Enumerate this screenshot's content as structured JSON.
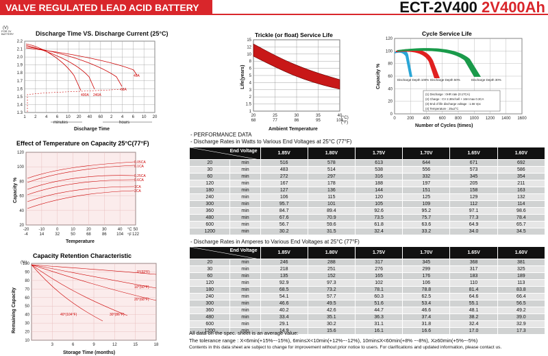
{
  "header": {
    "banner": "VALVE REGULATED LEAD ACID BATTERY",
    "model": "ECT-2V400",
    "rating": "2V400Ah"
  },
  "charts": {
    "discharge": {
      "title": "Discharge Time VS. Discharge Current (25°C)",
      "yaxis_unit": "(V)\nFOR 2V\nBATTERY",
      "yticks": [
        "2.2",
        "2.1",
        "2.0",
        "1.9",
        "1.8",
        "1.7",
        "1.6",
        "1.5",
        "1.4",
        "1.3"
      ],
      "xticks": [
        "1",
        "2",
        "4",
        "6",
        "10",
        "20",
        "40",
        "60",
        "2",
        "4",
        "6",
        "10",
        "20"
      ],
      "minutes": "minutes",
      "hours": "hours",
      "xlabel": "Discharge Time",
      "curve_labels": [
        "400A",
        "240A",
        "68A",
        "40A"
      ]
    },
    "trickle": {
      "title": "Trickle (or float) Service Life",
      "ylabel": "Life(years)",
      "yticks": [
        "15",
        "12",
        "10",
        "8",
        "6",
        "5",
        "4",
        "3",
        "2",
        "1.5",
        "1"
      ],
      "xticks_c": [
        "20",
        "25",
        "30",
        "35",
        "40"
      ],
      "xticks_f": [
        "68",
        "77",
        "86",
        "95",
        "104"
      ],
      "unit_c": "(°C)",
      "unit_f": "(°F)",
      "xlabel": "Ambient Temperature"
    },
    "cycle": {
      "title": "Cycle Service Life",
      "ylabel": "Capacity %",
      "yticks": [
        "120",
        "100",
        "80",
        "60",
        "40",
        "20",
        "0"
      ],
      "xticks": [
        "0",
        "200",
        "400",
        "600",
        "800",
        "1000",
        "1200",
        "1400",
        "1600"
      ],
      "xlabel": "Number of Cycles (times)",
      "depth_labels": [
        "Discharge Depth 100%",
        "Discharge Depth 50%",
        "Discharge Depth 30%"
      ],
      "notes": [
        "(1) Discharge : 0HR rate (0.17CA)",
        "(2) Charge : CV 2.36V/cell + 16H max 0.3CA",
        "(3) End of life discharge voltage : 1.66 Vpc",
        "(4) Temperature : 25±2°C"
      ]
    },
    "temp": {
      "title": "Effect of Temperature on Capacity  25°C(77°F)",
      "ylabel": "Capacity %",
      "yticks": [
        "120",
        "100",
        "80",
        "60",
        "40",
        "20"
      ],
      "xticks_c": [
        "-20",
        "-10",
        "0",
        "10",
        "20",
        "30",
        "40",
        "50"
      ],
      "xticks_f": [
        "-4",
        "14",
        "32",
        "50",
        "68",
        "86",
        "104",
        "122"
      ],
      "unit_c": "°C",
      "unit_f": "°F",
      "xlabel": "Temperature",
      "curve_labels": [
        "0.05CA",
        "0.1CA",
        "0.25CA",
        "0.6CA",
        "1CA",
        "2CA"
      ]
    },
    "retention": {
      "title": "Capacity Retention Characteristic",
      "ylabel": "Remaining Capacity",
      "unit": "(%)",
      "yticks": [
        "100",
        "90",
        "80",
        "70",
        "60",
        "50",
        "40",
        "30",
        "20",
        "10"
      ],
      "xticks": [
        "3",
        "6",
        "9",
        "12",
        "15",
        "18"
      ],
      "xlabel": "Storage Time (months)",
      "curve_labels": [
        "0°(32°F)",
        "10°(50°F)",
        "20°(68°F)",
        "40°(104°F)",
        "30°(86°F)"
      ]
    }
  },
  "performance": {
    "heading": "- PERFORMANCE DATA",
    "watts_heading": "- Discharge Rates in Watts to Various End Voltages at 25°C (77°F)",
    "amps_heading": "- Discharge Rates in Amperes to Various End Voltages at 25°C (77°F)",
    "corner_label": "End Voltage",
    "voltages": [
      "1.85V",
      "1.80V",
      "1.75V",
      "1.70V",
      "1.65V",
      "1.60V"
    ],
    "unit": "min",
    "times": [
      "20",
      "30",
      "60",
      "120",
      "180",
      "240",
      "300",
      "360",
      "480",
      "600",
      "1200"
    ],
    "watts": [
      [
        "516",
        "578",
        "613",
        "644",
        "671",
        "692"
      ],
      [
        "483",
        "514",
        "538",
        "556",
        "573",
        "586"
      ],
      [
        "272",
        "297",
        "316",
        "332",
        "345",
        "354"
      ],
      [
        "167",
        "178",
        "188",
        "197",
        "205",
        "211"
      ],
      [
        "127",
        "136",
        "144",
        "151",
        "158",
        "163"
      ],
      [
        "106",
        "115",
        "120",
        "125",
        "129",
        "132"
      ],
      [
        "95.7",
        "101",
        "105",
        "109",
        "112",
        "114"
      ],
      [
        "84.7",
        "89.4",
        "92.6",
        "95.2",
        "97.1",
        "98.6"
      ],
      [
        "67.6",
        "70.9",
        "73.5",
        "75.7",
        "77.3",
        "78.4"
      ],
      [
        "56.7",
        "59.6",
        "61.8",
        "63.6",
        "64.9",
        "65.7"
      ],
      [
        "30.2",
        "31.5",
        "32.4",
        "33.2",
        "34.0",
        "34.5"
      ]
    ],
    "amps": [
      [
        "246",
        "288",
        "317",
        "345",
        "368",
        "381"
      ],
      [
        "218",
        "251",
        "276",
        "299",
        "317",
        "325"
      ],
      [
        "135",
        "152",
        "165",
        "176",
        "183",
        "189"
      ],
      [
        "92.9",
        "97.3",
        "102",
        "106",
        "110",
        "113"
      ],
      [
        "68.5",
        "73.2",
        "78.1",
        "78.8",
        "81.4",
        "83.8"
      ],
      [
        "54.1",
        "57.7",
        "60.3",
        "62.5",
        "64.6",
        "66.4"
      ],
      [
        "46.6",
        "49.5",
        "51.6",
        "53.4",
        "55.1",
        "56.5"
      ],
      [
        "40.2",
        "42.6",
        "44.7",
        "46.6",
        "48.1",
        "49.2"
      ],
      [
        "33.4",
        "35.1",
        "36.3",
        "37.4",
        "38.2",
        "39.0"
      ],
      [
        "29.1",
        "30.2",
        "31.1",
        "31.8",
        "32.4",
        "32.9"
      ],
      [
        "14.9",
        "15.6",
        "16.1",
        "16.6",
        "17.0",
        "17.3"
      ]
    ]
  },
  "footer": {
    "line1": "All data on the spec. sheet is an average value:",
    "line2": "The tolerance range : X<6min(+15%~-15%), 6min≤X<10min(+12%~-12%), 10min≤X<60min(+8% ~-8%), X≥60min(+5%~-5%)",
    "line3": "Contents in this data sheet are subject to change for improvement without prior notice to users. For clarifications and updated information, please contact us."
  },
  "colors": {
    "accent": "#d9262b",
    "header_bg": "#111111",
    "row_a": "#d0d2d2",
    "row_b": "#e6e6e6",
    "cycle_blue": "#2aa6d6",
    "cycle_red": "#e02020",
    "cycle_green": "#1a9a4a"
  }
}
